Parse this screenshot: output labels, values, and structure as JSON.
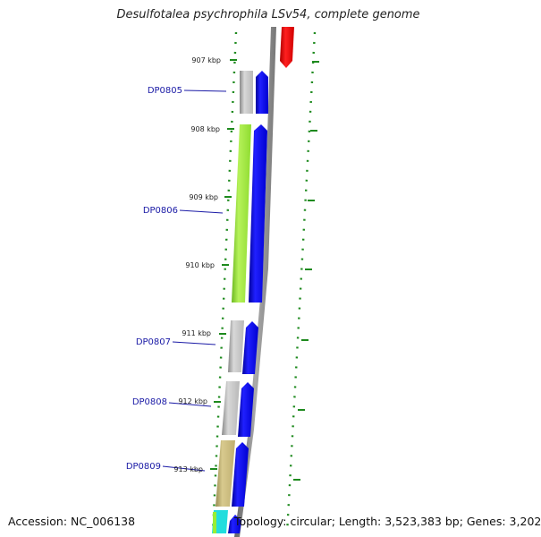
{
  "title": "Desulfotalea psychrophila LSv54, complete genome",
  "footer": {
    "accession": "Accession: NC_006138",
    "topology": "Topology: circular; Length: 3,523,383 bp; Genes: 3,202"
  },
  "scale_labels": [
    "907 kbp",
    "908 kbp",
    "909 kbp",
    "910 kbp",
    "911 kbp",
    "912 kbp",
    "913 kbp"
  ],
  "genes": [
    "DP0805",
    "DP0806",
    "DP0807",
    "DP0808",
    "DP0809"
  ],
  "colors": {
    "gene_label": "#1a1aa6",
    "tick": "#1e8a1e",
    "cds_blue": "#0000ee",
    "red_feature": "#ee0000",
    "backbone": "#888888",
    "gray_feature": "#c0c0c0",
    "green_feature": "#99ee33",
    "khaki_feature": "#c8b878",
    "cyan_feature": "#22dddd"
  }
}
